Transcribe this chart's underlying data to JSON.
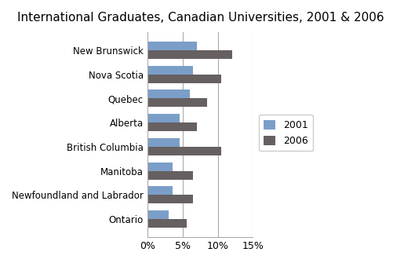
{
  "title": "International Graduates, Canadian Universities, 2001 & 2006",
  "categories": [
    "New Brunswick",
    "Nova Scotia",
    "Quebec",
    "Alberta",
    "British Columbia",
    "Manitoba",
    "Newfoundland and Labrador",
    "Ontario"
  ],
  "values_2001": [
    7.0,
    6.5,
    6.0,
    4.5,
    4.5,
    3.5,
    3.5,
    3.0
  ],
  "values_2006": [
    12.0,
    10.5,
    8.5,
    7.0,
    10.5,
    6.5,
    6.5,
    5.5
  ],
  "color_2001": "#7b9ec8",
  "color_2006": "#666060",
  "legend_labels": [
    "2001",
    "2006"
  ],
  "xlim": [
    0,
    15
  ],
  "xticks": [
    0,
    5,
    10,
    15
  ],
  "xtick_labels": [
    "0%",
    "5%",
    "10%",
    "15%"
  ],
  "title_fontsize": 11,
  "label_fontsize": 8.5,
  "tick_fontsize": 9,
  "bar_height": 0.36,
  "background_color": "#ffffff"
}
